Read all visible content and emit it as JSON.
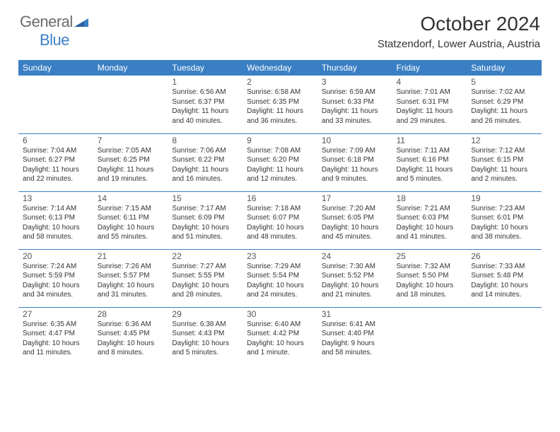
{
  "brand": {
    "part1": "General",
    "part2": "Blue"
  },
  "title": "October 2024",
  "location": "Statzendorf, Lower Austria, Austria",
  "colors": {
    "header_bg": "#3a7fc4",
    "header_text": "#ffffff",
    "border": "#3a7fc4",
    "logo_gray": "#6b6b6b",
    "logo_blue": "#3a7fc4"
  },
  "day_headers": [
    "Sunday",
    "Monday",
    "Tuesday",
    "Wednesday",
    "Thursday",
    "Friday",
    "Saturday"
  ],
  "weeks": [
    [
      null,
      null,
      {
        "n": "1",
        "sr": "Sunrise: 6:56 AM",
        "ss": "Sunset: 6:37 PM",
        "dl1": "Daylight: 11 hours",
        "dl2": "and 40 minutes."
      },
      {
        "n": "2",
        "sr": "Sunrise: 6:58 AM",
        "ss": "Sunset: 6:35 PM",
        "dl1": "Daylight: 11 hours",
        "dl2": "and 36 minutes."
      },
      {
        "n": "3",
        "sr": "Sunrise: 6:59 AM",
        "ss": "Sunset: 6:33 PM",
        "dl1": "Daylight: 11 hours",
        "dl2": "and 33 minutes."
      },
      {
        "n": "4",
        "sr": "Sunrise: 7:01 AM",
        "ss": "Sunset: 6:31 PM",
        "dl1": "Daylight: 11 hours",
        "dl2": "and 29 minutes."
      },
      {
        "n": "5",
        "sr": "Sunrise: 7:02 AM",
        "ss": "Sunset: 6:29 PM",
        "dl1": "Daylight: 11 hours",
        "dl2": "and 26 minutes."
      }
    ],
    [
      {
        "n": "6",
        "sr": "Sunrise: 7:04 AM",
        "ss": "Sunset: 6:27 PM",
        "dl1": "Daylight: 11 hours",
        "dl2": "and 22 minutes."
      },
      {
        "n": "7",
        "sr": "Sunrise: 7:05 AM",
        "ss": "Sunset: 6:25 PM",
        "dl1": "Daylight: 11 hours",
        "dl2": "and 19 minutes."
      },
      {
        "n": "8",
        "sr": "Sunrise: 7:06 AM",
        "ss": "Sunset: 6:22 PM",
        "dl1": "Daylight: 11 hours",
        "dl2": "and 16 minutes."
      },
      {
        "n": "9",
        "sr": "Sunrise: 7:08 AM",
        "ss": "Sunset: 6:20 PM",
        "dl1": "Daylight: 11 hours",
        "dl2": "and 12 minutes."
      },
      {
        "n": "10",
        "sr": "Sunrise: 7:09 AM",
        "ss": "Sunset: 6:18 PM",
        "dl1": "Daylight: 11 hours",
        "dl2": "and 9 minutes."
      },
      {
        "n": "11",
        "sr": "Sunrise: 7:11 AM",
        "ss": "Sunset: 6:16 PM",
        "dl1": "Daylight: 11 hours",
        "dl2": "and 5 minutes."
      },
      {
        "n": "12",
        "sr": "Sunrise: 7:12 AM",
        "ss": "Sunset: 6:15 PM",
        "dl1": "Daylight: 11 hours",
        "dl2": "and 2 minutes."
      }
    ],
    [
      {
        "n": "13",
        "sr": "Sunrise: 7:14 AM",
        "ss": "Sunset: 6:13 PM",
        "dl1": "Daylight: 10 hours",
        "dl2": "and 58 minutes."
      },
      {
        "n": "14",
        "sr": "Sunrise: 7:15 AM",
        "ss": "Sunset: 6:11 PM",
        "dl1": "Daylight: 10 hours",
        "dl2": "and 55 minutes."
      },
      {
        "n": "15",
        "sr": "Sunrise: 7:17 AM",
        "ss": "Sunset: 6:09 PM",
        "dl1": "Daylight: 10 hours",
        "dl2": "and 51 minutes."
      },
      {
        "n": "16",
        "sr": "Sunrise: 7:18 AM",
        "ss": "Sunset: 6:07 PM",
        "dl1": "Daylight: 10 hours",
        "dl2": "and 48 minutes."
      },
      {
        "n": "17",
        "sr": "Sunrise: 7:20 AM",
        "ss": "Sunset: 6:05 PM",
        "dl1": "Daylight: 10 hours",
        "dl2": "and 45 minutes."
      },
      {
        "n": "18",
        "sr": "Sunrise: 7:21 AM",
        "ss": "Sunset: 6:03 PM",
        "dl1": "Daylight: 10 hours",
        "dl2": "and 41 minutes."
      },
      {
        "n": "19",
        "sr": "Sunrise: 7:23 AM",
        "ss": "Sunset: 6:01 PM",
        "dl1": "Daylight: 10 hours",
        "dl2": "and 38 minutes."
      }
    ],
    [
      {
        "n": "20",
        "sr": "Sunrise: 7:24 AM",
        "ss": "Sunset: 5:59 PM",
        "dl1": "Daylight: 10 hours",
        "dl2": "and 34 minutes."
      },
      {
        "n": "21",
        "sr": "Sunrise: 7:26 AM",
        "ss": "Sunset: 5:57 PM",
        "dl1": "Daylight: 10 hours",
        "dl2": "and 31 minutes."
      },
      {
        "n": "22",
        "sr": "Sunrise: 7:27 AM",
        "ss": "Sunset: 5:55 PM",
        "dl1": "Daylight: 10 hours",
        "dl2": "and 28 minutes."
      },
      {
        "n": "23",
        "sr": "Sunrise: 7:29 AM",
        "ss": "Sunset: 5:54 PM",
        "dl1": "Daylight: 10 hours",
        "dl2": "and 24 minutes."
      },
      {
        "n": "24",
        "sr": "Sunrise: 7:30 AM",
        "ss": "Sunset: 5:52 PM",
        "dl1": "Daylight: 10 hours",
        "dl2": "and 21 minutes."
      },
      {
        "n": "25",
        "sr": "Sunrise: 7:32 AM",
        "ss": "Sunset: 5:50 PM",
        "dl1": "Daylight: 10 hours",
        "dl2": "and 18 minutes."
      },
      {
        "n": "26",
        "sr": "Sunrise: 7:33 AM",
        "ss": "Sunset: 5:48 PM",
        "dl1": "Daylight: 10 hours",
        "dl2": "and 14 minutes."
      }
    ],
    [
      {
        "n": "27",
        "sr": "Sunrise: 6:35 AM",
        "ss": "Sunset: 4:47 PM",
        "dl1": "Daylight: 10 hours",
        "dl2": "and 11 minutes."
      },
      {
        "n": "28",
        "sr": "Sunrise: 6:36 AM",
        "ss": "Sunset: 4:45 PM",
        "dl1": "Daylight: 10 hours",
        "dl2": "and 8 minutes."
      },
      {
        "n": "29",
        "sr": "Sunrise: 6:38 AM",
        "ss": "Sunset: 4:43 PM",
        "dl1": "Daylight: 10 hours",
        "dl2": "and 5 minutes."
      },
      {
        "n": "30",
        "sr": "Sunrise: 6:40 AM",
        "ss": "Sunset: 4:42 PM",
        "dl1": "Daylight: 10 hours",
        "dl2": "and 1 minute."
      },
      {
        "n": "31",
        "sr": "Sunrise: 6:41 AM",
        "ss": "Sunset: 4:40 PM",
        "dl1": "Daylight: 9 hours",
        "dl2": "and 58 minutes."
      },
      null,
      null
    ]
  ]
}
